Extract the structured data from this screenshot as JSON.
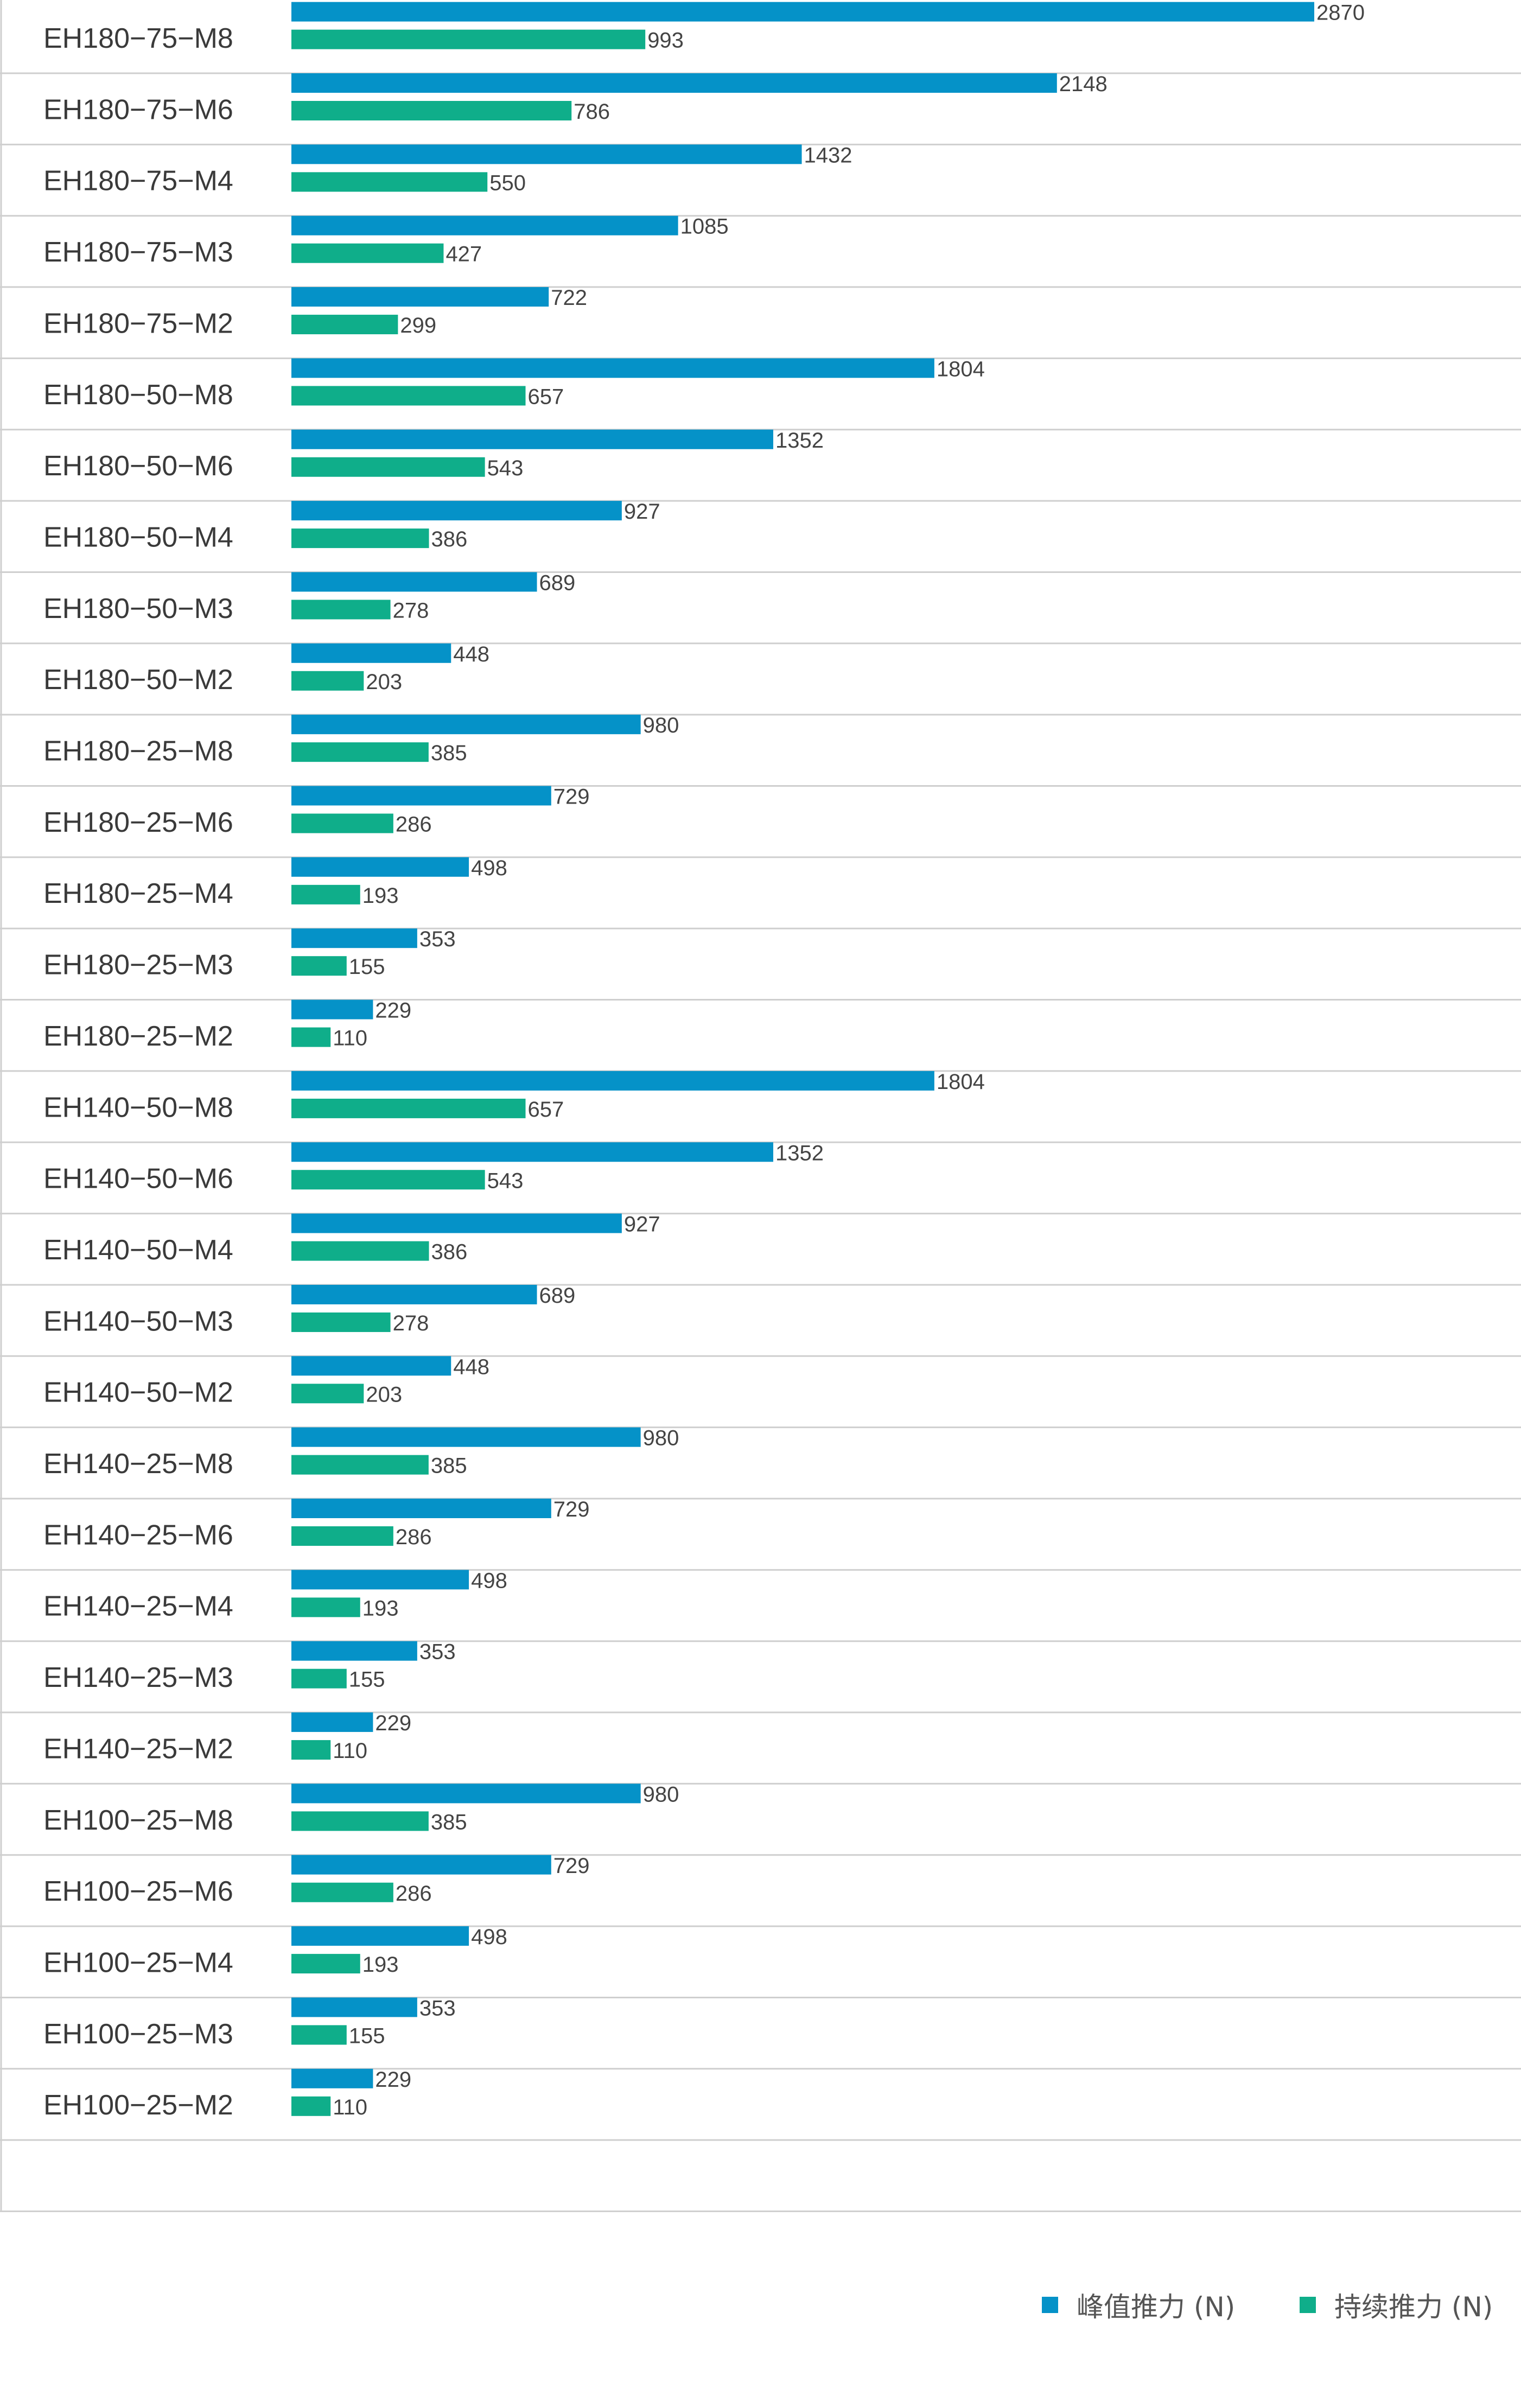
{
  "chart_data": {
    "type": "bar",
    "orientation": "horizontal",
    "categories": [
      "EH180−75−M8",
      "EH180−75−M6",
      "EH180−75−M4",
      "EH180−75−M3",
      "EH180−75−M2",
      "EH180−50−M8",
      "EH180−50−M6",
      "EH180−50−M4",
      "EH180−50−M3",
      "EH180−50−M2",
      "EH180−25−M8",
      "EH180−25−M6",
      "EH180−25−M4",
      "EH180−25−M3",
      "EH180−25−M2",
      "EH140−50−M8",
      "EH140−50−M6",
      "EH140−50−M4",
      "EH140−50−M3",
      "EH140−50−M2",
      "EH140−25−M8",
      "EH140−25−M6",
      "EH140−25−M4",
      "EH140−25−M3",
      "EH140−25−M2",
      "EH100−25−M8",
      "EH100−25−M6",
      "EH100−25−M4",
      "EH100−25−M3",
      "EH100−25−M2"
    ],
    "series": [
      {
        "name": "峰值推力 (N)",
        "color": "#0592c8",
        "values": [
          2870,
          2148,
          1432,
          1085,
          722,
          1804,
          1352,
          927,
          689,
          448,
          980,
          729,
          498,
          353,
          229,
          1804,
          1352,
          927,
          689,
          448,
          980,
          729,
          498,
          353,
          229,
          980,
          729,
          498,
          353,
          229
        ]
      },
      {
        "name": "持续推力 (N)",
        "color": "#0fae8a",
        "values": [
          993,
          786,
          550,
          427,
          299,
          657,
          543,
          386,
          278,
          203,
          385,
          286,
          193,
          155,
          110,
          657,
          543,
          386,
          278,
          203,
          385,
          286,
          193,
          155,
          110,
          385,
          286,
          193,
          155,
          110
        ]
      }
    ],
    "data_labels": true,
    "xlim": [
      0,
      2870
    ],
    "grid": "horizontal row separators",
    "legend_position": "bottom-right"
  }
}
